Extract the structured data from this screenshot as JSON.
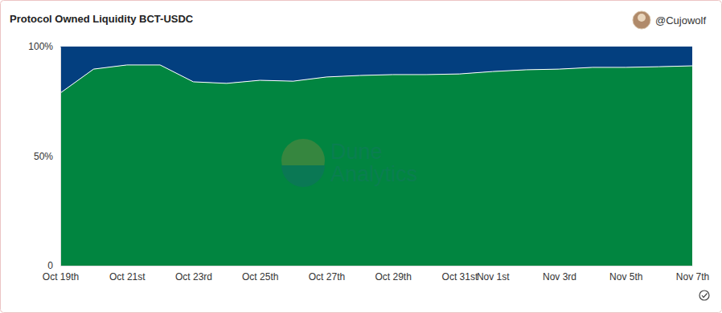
{
  "chart_data": {
    "type": "area",
    "title": "Protocol Owned Liquidity BCT-USDC",
    "author": "@Cujowolf",
    "watermark": "Dune Analytics",
    "stacked": true,
    "tick_labels": true,
    "categories": [
      "Oct 19th",
      null,
      "Oct 21st",
      null,
      "Oct 23rd",
      null,
      "Oct 25th",
      null,
      "Oct 27th",
      null,
      "Oct 29th",
      null,
      "Oct 31st",
      "Nov 1st",
      null,
      "Nov 3rd",
      null,
      "Nov 5th",
      null,
      "Nov 7th"
    ],
    "series": [
      {
        "color": "#018540",
        "values": [
          78.8,
          89.7,
          91.6,
          91.6,
          83.9,
          83.2,
          84.6,
          84.2,
          86.1,
          86.8,
          87.2,
          87.2,
          87.5,
          88.6,
          89.4,
          89.7,
          90.5,
          90.5,
          90.8,
          91.2
        ]
      },
      {
        "color": "#033f7f",
        "values": [
          21.2,
          10.3,
          8.4,
          8.4,
          16.1,
          16.8,
          15.4,
          15.8,
          13.9,
          13.2,
          12.8,
          12.8,
          12.5,
          11.4,
          10.6,
          10.3,
          9.5,
          9.5,
          9.2,
          8.8
        ]
      }
    ],
    "ylim": [
      0,
      100
    ],
    "yticks": [
      0,
      {
        "value": 50,
        "label": "50%"
      },
      {
        "value": 100,
        "label": "100%"
      }
    ]
  }
}
